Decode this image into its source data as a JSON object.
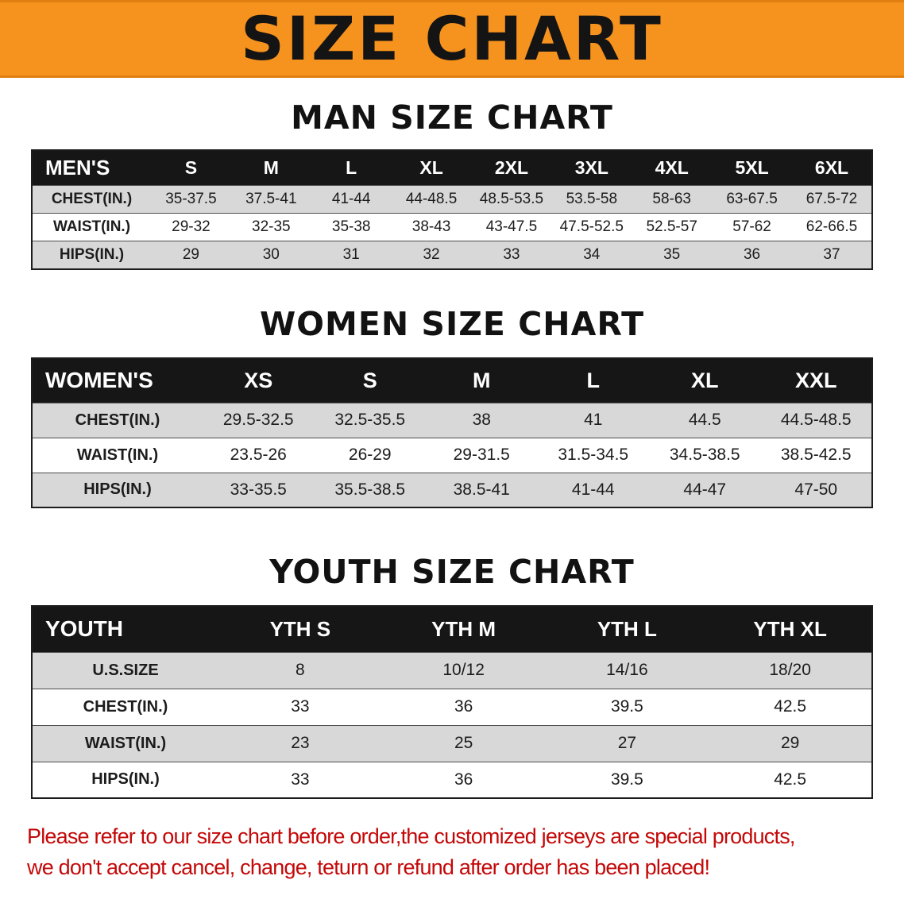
{
  "banner": {
    "title": "SIZE CHART",
    "bg_color": "#F6921E",
    "text_color": "#141414"
  },
  "sections": [
    {
      "heading": "MAN SIZE CHART",
      "table": {
        "header": [
          "MEN'S",
          "S",
          "M",
          "L",
          "XL",
          "2XL",
          "3XL",
          "4XL",
          "5XL",
          "6XL"
        ],
        "rows": [
          {
            "label": "CHEST(IN.)",
            "values": [
              "35-37.5",
              "37.5-41",
              "41-44",
              "44-48.5",
              "48.5-53.5",
              "53.5-58",
              "58-63",
              "63-67.5",
              "67.5-72"
            ]
          },
          {
            "label": "WAIST(IN.)",
            "values": [
              "29-32",
              "32-35",
              "35-38",
              "38-43",
              "43-47.5",
              "47.5-52.5",
              "52.5-57",
              "57-62",
              "62-66.5"
            ]
          },
          {
            "label": "HIPS(IN.)",
            "values": [
              "29",
              "30",
              "31",
              "32",
              "33",
              "34",
              "35",
              "36",
              "37"
            ]
          }
        ]
      }
    },
    {
      "heading": "WOMEN SIZE CHART",
      "table": {
        "header": [
          "WOMEN'S",
          "XS",
          "S",
          "M",
          "L",
          "XL",
          "XXL"
        ],
        "rows": [
          {
            "label": "CHEST(IN.)",
            "values": [
              "29.5-32.5",
              "32.5-35.5",
              "38",
              "41",
              "44.5",
              "44.5-48.5"
            ]
          },
          {
            "label": "WAIST(IN.)",
            "values": [
              "23.5-26",
              "26-29",
              "29-31.5",
              "31.5-34.5",
              "34.5-38.5",
              "38.5-42.5"
            ]
          },
          {
            "label": "HIPS(IN.)",
            "values": [
              "33-35.5",
              "35.5-38.5",
              "38.5-41",
              "41-44",
              "44-47",
              "47-50"
            ]
          }
        ]
      }
    },
    {
      "heading": "YOUTH SIZE CHART",
      "table": {
        "header": [
          "YOUTH",
          "YTH S",
          "YTH M",
          "YTH L",
          "YTH XL"
        ],
        "rows": [
          {
            "label": "U.S.SIZE",
            "values": [
              "8",
              "10/12",
              "14/16",
              "18/20"
            ]
          },
          {
            "label": "CHEST(IN.)",
            "values": [
              "33",
              "36",
              "39.5",
              "42.5"
            ]
          },
          {
            "label": "WAIST(IN.)",
            "values": [
              "23",
              "25",
              "27",
              "29"
            ]
          },
          {
            "label": "HIPS(IN.)",
            "values": [
              "33",
              "36",
              "39.5",
              "42.5"
            ]
          }
        ]
      }
    }
  ],
  "footer_note": {
    "line1": "Please refer to our size chart before order,the customized jerseys are special products,",
    "line2": "we don't accept cancel, change, teturn or refund after order has been placed!",
    "color": "#C40808"
  }
}
